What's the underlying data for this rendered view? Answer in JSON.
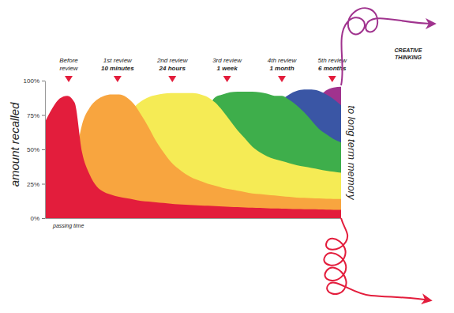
{
  "chart_data": {
    "type": "area",
    "y_label": "amount recalled",
    "x_label": "passing time",
    "side_label": "to long term memory",
    "exit_label": [
      "CREATIVE",
      "THINKING"
    ],
    "annotations": [
      {
        "text": [
          "Before",
          "review"
        ],
        "x": 8
      },
      {
        "text": [
          "1st review",
          "10 minutes"
        ],
        "x": 24.5
      },
      {
        "text": [
          "2nd review",
          "24 hours"
        ],
        "x": 43
      },
      {
        "text": [
          "3rd review",
          "1 week"
        ],
        "x": 61.5
      },
      {
        "text": [
          "4th review",
          "1 month"
        ],
        "x": 80
      },
      {
        "text": [
          "5th review",
          "6 months"
        ],
        "x": 97
      }
    ],
    "x": [
      0,
      2.5,
      5,
      7.5,
      10,
      12.5,
      15,
      17.5,
      20,
      22.5,
      25,
      27.5,
      30,
      32.5,
      35,
      37.5,
      40,
      42.5,
      45,
      47.5,
      50,
      52.5,
      55,
      57.5,
      60,
      62.5,
      65,
      67.5,
      70,
      72.5,
      75,
      77.5,
      80,
      82.5,
      85,
      87.5,
      90,
      92.5,
      95,
      97.5,
      100
    ],
    "xlim": [
      0,
      100
    ],
    "ylim": [
      0,
      100
    ],
    "yticks": [
      {
        "value": 0,
        "label": "0%"
      },
      {
        "value": 25,
        "label": "25%"
      },
      {
        "value": 50,
        "label": "50%"
      },
      {
        "value": 75,
        "label": "75%"
      },
      {
        "value": 100,
        "label": "100%"
      }
    ],
    "tick_labels": "y",
    "grid": false,
    "series": [
      {
        "color": "#e31d3c",
        "values": [
          70,
          80,
          87,
          89,
          84,
          48,
          32,
          23,
          19,
          17,
          15.5,
          14.5,
          13.5,
          12.5,
          12,
          11.5,
          11,
          10.5,
          10,
          9.8,
          9.5,
          9.2,
          9,
          8.7,
          8.5,
          8.2,
          8,
          7.8,
          7.6,
          7.4,
          7.2,
          7,
          6.9,
          6.8,
          6.6,
          6.5,
          6.4,
          6.3,
          6.2,
          6.1,
          6
        ]
      },
      {
        "color": "#f8a53f",
        "values": [
          null,
          null,
          null,
          null,
          40,
          68,
          80,
          86,
          89,
          90,
          90,
          88,
          83,
          75,
          66,
          56,
          48,
          41,
          36,
          32,
          29,
          27,
          25,
          23.5,
          22,
          21,
          20,
          19,
          18,
          17.5,
          17,
          16.5,
          16,
          15.5,
          15,
          14.8,
          14.5,
          14.3,
          14.1,
          14,
          14
        ]
      },
      {
        "color": "#f5eb55",
        "values": [
          null,
          null,
          null,
          null,
          null,
          null,
          null,
          null,
          null,
          null,
          null,
          70,
          80,
          85,
          88,
          89.5,
          90.5,
          91,
          91,
          91,
          91,
          90,
          88,
          84,
          78,
          71,
          64,
          58,
          52,
          48,
          45,
          43,
          41.5,
          40,
          38.5,
          37.5,
          36.5,
          35.5,
          34.5,
          33.7,
          33
        ]
      },
      {
        "color": "#3eae4b",
        "values": [
          null,
          null,
          null,
          null,
          null,
          null,
          null,
          null,
          null,
          null,
          null,
          null,
          null,
          null,
          null,
          null,
          null,
          null,
          null,
          null,
          null,
          null,
          80,
          88,
          90,
          91.5,
          92,
          92,
          92,
          91.5,
          90.5,
          89,
          89,
          86,
          82,
          77,
          71,
          65,
          61,
          57.5,
          55
        ]
      },
      {
        "color": "#3a56a5",
        "values": [
          null,
          null,
          null,
          null,
          null,
          null,
          null,
          null,
          null,
          null,
          null,
          null,
          null,
          null,
          null,
          null,
          null,
          null,
          null,
          null,
          null,
          null,
          null,
          null,
          null,
          null,
          null,
          null,
          null,
          null,
          null,
          80,
          86,
          90,
          92.5,
          93.5,
          93.5,
          92.5,
          90,
          86.5,
          82
        ]
      },
      {
        "color": "#a0338e",
        "values": [
          null,
          null,
          null,
          null,
          null,
          null,
          null,
          null,
          null,
          null,
          null,
          null,
          null,
          null,
          null,
          null,
          null,
          null,
          null,
          null,
          null,
          null,
          null,
          null,
          null,
          null,
          null,
          null,
          null,
          null,
          null,
          null,
          null,
          null,
          null,
          null,
          null,
          88,
          93,
          95,
          95.5
        ]
      }
    ]
  }
}
